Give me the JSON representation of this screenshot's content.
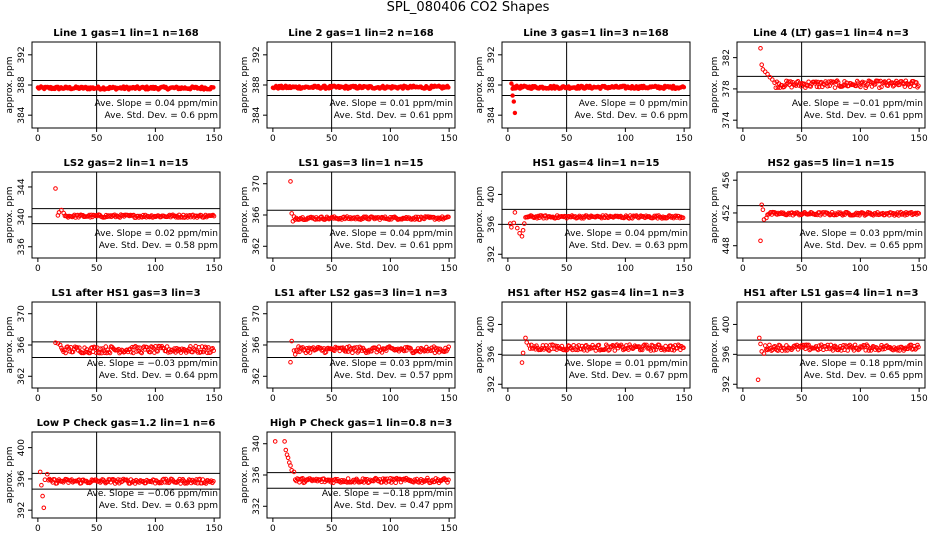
{
  "figure": {
    "title": "SPL_080406  CO2 Shapes"
  },
  "chart_data": [
    {
      "type": "scatter",
      "title": "Line 1 gas=1 lin=1 n=168",
      "ylabel": "approx. ppm",
      "xlim": [
        -5,
        155
      ],
      "ylim": [
        382.3,
        393.7
      ],
      "xticks": [
        0,
        50,
        100,
        150
      ],
      "yticks": [
        384,
        388,
        392
      ],
      "vline": 50,
      "hlines": [
        388.6,
        386.6
      ],
      "base": 387.6,
      "noise": 0.2,
      "spikes": [],
      "xstart": 0,
      "xend": 150,
      "markers": "filled",
      "slope_label": "Ave. Slope =",
      "slope_value": "0.04",
      "slope_unit": "ppm/min",
      "std_label": "Ave. Std. Dev. =",
      "std_value": "0.6",
      "std_unit": "ppm",
      "series": [
        {
          "name": "CO2",
          "color": "#ff0000"
        }
      ]
    },
    {
      "type": "scatter",
      "title": "Line 2 gas=1 lin=2 n=168",
      "ylabel": "approx. ppm",
      "xlim": [
        -5,
        155
      ],
      "ylim": [
        382.3,
        393.7
      ],
      "xticks": [
        0,
        50,
        100,
        150
      ],
      "yticks": [
        384,
        388,
        392
      ],
      "vline": 50,
      "hlines": [
        388.6,
        386.6
      ],
      "base": 387.7,
      "noise": 0.2,
      "spikes": [],
      "xstart": 0,
      "xend": 150,
      "markers": "filled",
      "slope_label": "Ave. Slope =",
      "slope_value": "0.01",
      "slope_unit": "ppm/min",
      "std_label": "Ave. Std. Dev. =",
      "std_value": "0.61",
      "std_unit": "ppm",
      "series": [
        {
          "name": "CO2",
          "color": "#ff0000"
        }
      ]
    },
    {
      "type": "scatter",
      "title": "Line 3 gas=1 lin=3 n=168",
      "ylabel": "approx. ppm",
      "xlim": [
        -5,
        155
      ],
      "ylim": [
        382.3,
        393.7
      ],
      "xticks": [
        0,
        50,
        100,
        150
      ],
      "yticks": [
        384,
        388,
        392
      ],
      "vline": 50,
      "hlines": [
        388.6,
        386.6
      ],
      "base": 387.7,
      "noise": 0.2,
      "spikes": [
        [
          3,
          388.2
        ],
        [
          4,
          386.6
        ],
        [
          5,
          385.8
        ],
        [
          6,
          384.3
        ]
      ],
      "xstart": 4,
      "xend": 150,
      "markers": "filled",
      "slope_label": "Ave. Slope =",
      "slope_value": "0",
      "slope_unit": "ppm/min",
      "std_label": "Ave. Std. Dev. =",
      "std_value": "0.6",
      "std_unit": "ppm",
      "series": [
        {
          "name": "CO2",
          "color": "#ff0000"
        }
      ]
    },
    {
      "type": "scatter",
      "title": "Line 4 (LT) gas=1 lin=4 n=3",
      "ylabel": "approx. ppm",
      "xlim": [
        -5,
        155
      ],
      "ylim": [
        373,
        384
      ],
      "xticks": [
        0,
        50,
        100,
        150
      ],
      "yticks": [
        374,
        378,
        382
      ],
      "vline": 50,
      "hlines": [
        379.6,
        377.6
      ],
      "base": 378.6,
      "noise": 0.45,
      "spikes": [
        [
          15,
          383.2
        ],
        [
          16,
          381.1
        ],
        [
          17,
          380.5
        ],
        [
          19,
          380.2
        ],
        [
          21,
          379.9
        ],
        [
          23,
          379.5
        ],
        [
          25,
          379.2
        ],
        [
          27,
          378.8
        ]
      ],
      "xstart": 28,
      "xend": 150,
      "markers": "open",
      "slope_label": "Ave. Slope =",
      "slope_value": "−0.01",
      "slope_unit": "ppm/min",
      "std_label": "Ave. Std. Dev. =",
      "std_value": "0.61",
      "std_unit": "ppm",
      "series": [
        {
          "name": "CO2",
          "color": "#ff0000"
        }
      ]
    },
    {
      "type": "scatter",
      "title": "LS2 gas=2 lin=1 n=15",
      "ylabel": "approx. ppm",
      "xlim": [
        -5,
        155
      ],
      "ylim": [
        334.5,
        346
      ],
      "xticks": [
        0,
        50,
        100,
        150
      ],
      "yticks": [
        336,
        340,
        344
      ],
      "vline": 50,
      "hlines": [
        341.1,
        339.1
      ],
      "base": 340.1,
      "noise": 0.2,
      "spikes": [
        [
          15,
          343.8
        ],
        [
          17,
          340.2
        ],
        [
          18,
          340.6
        ],
        [
          20,
          340.9
        ],
        [
          22,
          340.5
        ]
      ],
      "xstart": 23,
      "xend": 150,
      "markers": "open",
      "slope_label": "Ave. Slope =",
      "slope_value": "0.02",
      "slope_unit": "ppm/min",
      "std_label": "Ave. Std. Dev. =",
      "std_value": "0.58",
      "std_unit": "ppm",
      "series": [
        {
          "name": "CO2",
          "color": "#ff0000"
        }
      ]
    },
    {
      "type": "scatter",
      "title": "LS1 gas=3 lin=1 n=15",
      "ylabel": "approx. ppm",
      "xlim": [
        -5,
        155
      ],
      "ylim": [
        360.5,
        371.5
      ],
      "xticks": [
        0,
        50,
        100,
        150
      ],
      "yticks": [
        362,
        366,
        370
      ],
      "vline": 50,
      "hlines": [
        366.6,
        364.6
      ],
      "base": 365.6,
      "noise": 0.2,
      "spikes": [
        [
          15,
          370.3
        ],
        [
          16,
          366.2
        ],
        [
          17,
          365.2
        ],
        [
          18,
          365.8
        ]
      ],
      "xstart": 19,
      "xend": 150,
      "markers": "open",
      "slope_label": "Ave. Slope =",
      "slope_value": "0.04",
      "slope_unit": "ppm/min",
      "std_label": "Ave. Std. Dev. =",
      "std_value": "0.61",
      "std_unit": "ppm",
      "series": [
        {
          "name": "CO2",
          "color": "#ff0000"
        }
      ]
    },
    {
      "type": "scatter",
      "title": "HS1 gas=4 lin=1 n=15",
      "ylabel": "approx. ppm",
      "xlim": [
        -5,
        155
      ],
      "ylim": [
        391.5,
        403
      ],
      "xticks": [
        0,
        50,
        100,
        150
      ],
      "yticks": [
        392,
        396,
        400
      ],
      "vline": 50,
      "hlines": [
        398.0,
        396.0
      ],
      "base": 397.0,
      "noise": 0.2,
      "spikes": [
        [
          2,
          396.1
        ],
        [
          3,
          395.6
        ],
        [
          5,
          396.2
        ],
        [
          6,
          397.6
        ],
        [
          8,
          395.5
        ],
        [
          10,
          394.8
        ],
        [
          12,
          394.4
        ],
        [
          13,
          395.2
        ],
        [
          14,
          396.1
        ]
      ],
      "xstart": 15,
      "xend": 150,
      "markers": "open",
      "slope_label": "Ave. Slope =",
      "slope_value": "0.04",
      "slope_unit": "ppm/min",
      "std_label": "Ave. Std. Dev. =",
      "std_value": "0.63",
      "std_unit": "ppm",
      "series": [
        {
          "name": "CO2",
          "color": "#ff0000"
        }
      ]
    },
    {
      "type": "scatter",
      "title": "HS2 gas=5 lin=1 n=15",
      "ylabel": "approx. ppm",
      "xlim": [
        -5,
        155
      ],
      "ylim": [
        446.5,
        457
      ],
      "xticks": [
        0,
        50,
        100,
        150
      ],
      "yticks": [
        448,
        452,
        456
      ],
      "vline": 50,
      "hlines": [
        452.9,
        450.9
      ],
      "base": 451.9,
      "noise": 0.2,
      "spikes": [
        [
          15,
          448.6
        ],
        [
          16,
          453.0
        ],
        [
          17,
          452.4
        ],
        [
          18,
          451.2
        ],
        [
          20,
          451.4
        ]
      ],
      "xstart": 21,
      "xend": 150,
      "markers": "open",
      "slope_label": "Ave. Slope =",
      "slope_value": "0.03",
      "slope_unit": "ppm/min",
      "std_label": "Ave. Std. Dev. =",
      "std_value": "0.65",
      "std_unit": "ppm",
      "series": [
        {
          "name": "CO2",
          "color": "#ff0000"
        }
      ]
    },
    {
      "type": "scatter",
      "title": "LS1 after HS1 gas=3 lin=3",
      "ylabel": "approx. ppm",
      "xlim": [
        -5,
        155
      ],
      "ylim": [
        360.5,
        371.5
      ],
      "xticks": [
        0,
        50,
        100,
        150
      ],
      "yticks": [
        362,
        366,
        370
      ],
      "vline": 50,
      "hlines": [
        366.4,
        364.4
      ],
      "base": 365.4,
      "noise": 0.45,
      "spikes": [
        [
          15,
          366.3
        ],
        [
          17,
          366.2
        ],
        [
          19,
          366.0
        ]
      ],
      "xstart": 20,
      "xend": 150,
      "markers": "open",
      "slope_label": "Ave. Slope =",
      "slope_value": "−0.03",
      "slope_unit": "ppm/min",
      "std_label": "Ave. Std. Dev. =",
      "std_value": "0.64",
      "std_unit": "ppm",
      "series": [
        {
          "name": "CO2",
          "color": "#ff0000"
        }
      ]
    },
    {
      "type": "scatter",
      "title": "LS1 after LS2 gas=3 lin=1 n=3",
      "ylabel": "approx. ppm",
      "xlim": [
        -5,
        155
      ],
      "ylim": [
        360.5,
        371.5
      ],
      "xticks": [
        0,
        50,
        100,
        150
      ],
      "yticks": [
        362,
        366,
        370
      ],
      "vline": 50,
      "hlines": [
        366.4,
        364.4
      ],
      "base": 365.4,
      "noise": 0.4,
      "spikes": [
        [
          15,
          363.8
        ],
        [
          16,
          366.5
        ],
        [
          18,
          365.3
        ],
        [
          19,
          364.8
        ]
      ],
      "xstart": 20,
      "xend": 150,
      "markers": "open",
      "slope_label": "Ave. Slope =",
      "slope_value": "0.03",
      "slope_unit": "ppm/min",
      "std_label": "Ave. Std. Dev. =",
      "std_value": "0.57",
      "std_unit": "ppm",
      "series": [
        {
          "name": "CO2",
          "color": "#ff0000"
        }
      ]
    },
    {
      "type": "scatter",
      "title": "HS1 after HS2 gas=4 lin=1 n=3",
      "ylabel": "approx. ppm",
      "xlim": [
        -5,
        155
      ],
      "ylim": [
        391.5,
        403
      ],
      "xticks": [
        0,
        50,
        100,
        150
      ],
      "yticks": [
        392,
        396,
        400
      ],
      "vline": 50,
      "hlines": [
        397.9,
        395.9
      ],
      "base": 396.9,
      "noise": 0.4,
      "spikes": [
        [
          12,
          394.9
        ],
        [
          13,
          396.2
        ],
        [
          15,
          398.2
        ],
        [
          16,
          397.6
        ],
        [
          18,
          397.2
        ]
      ],
      "xstart": 19,
      "xend": 150,
      "markers": "open",
      "slope_label": "Ave. Slope =",
      "slope_value": "0.01",
      "slope_unit": "ppm/min",
      "std_label": "Ave. Std. Dev. =",
      "std_value": "0.67",
      "std_unit": "ppm",
      "series": [
        {
          "name": "CO2",
          "color": "#ff0000"
        }
      ]
    },
    {
      "type": "scatter",
      "title": "HS1 after LS1 gas=4 lin=1 n=3",
      "ylabel": "approx. ppm",
      "xlim": [
        -5,
        155
      ],
      "ylim": [
        391.5,
        403
      ],
      "xticks": [
        0,
        50,
        100,
        150
      ],
      "yticks": [
        392,
        396,
        400
      ],
      "vline": 50,
      "hlines": [
        397.9,
        395.9
      ],
      "base": 396.9,
      "noise": 0.4,
      "spikes": [
        [
          13,
          392.6
        ],
        [
          14,
          398.2
        ],
        [
          15,
          397.4
        ],
        [
          16,
          396.4
        ],
        [
          18,
          396.1
        ]
      ],
      "xstart": 19,
      "xend": 150,
      "markers": "open",
      "slope_label": "Ave. Slope =",
      "slope_value": "0.18",
      "slope_unit": "ppm/min",
      "std_label": "Ave. Std. Dev. =",
      "std_value": "0.65",
      "std_unit": "ppm",
      "series": [
        {
          "name": "CO2",
          "color": "#ff0000"
        }
      ]
    },
    {
      "type": "scatter",
      "title": "Low P Check gas=1.2 lin=1 n=6",
      "ylabel": "approx. ppm",
      "xlim": [
        -5,
        155
      ],
      "ylim": [
        391,
        402
      ],
      "xticks": [
        0,
        50,
        100,
        150
      ],
      "yticks": [
        392,
        396,
        400
      ],
      "vline": 50,
      "hlines": [
        396.7,
        394.7
      ],
      "base": 395.7,
      "noise": 0.3,
      "spikes": [
        [
          2,
          396.9
        ],
        [
          3,
          395.2
        ],
        [
          4,
          393.8
        ],
        [
          5,
          392.3
        ],
        [
          6,
          395.9
        ],
        [
          8,
          396.6
        ]
      ],
      "xstart": 9,
      "xend": 150,
      "markers": "open",
      "slope_label": "Ave. Slope =",
      "slope_value": "−0.06",
      "slope_unit": "ppm/min",
      "std_label": "Ave. Std. Dev. =",
      "std_value": "0.63",
      "std_unit": "ppm",
      "series": [
        {
          "name": "CO2",
          "color": "#ff0000"
        }
      ]
    },
    {
      "type": "scatter",
      "title": "High P Check gas=1 lin=0.8 n=3",
      "ylabel": "approx. ppm",
      "xlim": [
        -5,
        155
      ],
      "ylim": [
        330.5,
        341.5
      ],
      "xticks": [
        0,
        50,
        100,
        150
      ],
      "yticks": [
        332,
        336,
        340
      ],
      "vline": 50,
      "hlines": [
        336.3,
        334.3
      ],
      "base": 335.3,
      "noise": 0.3,
      "spikes": [
        [
          2,
          340.3
        ],
        [
          10,
          340.3
        ],
        [
          11,
          339.2
        ],
        [
          12,
          338.6
        ],
        [
          13,
          338.2
        ],
        [
          14,
          337.6
        ],
        [
          15,
          337.2
        ],
        [
          16,
          336.6
        ],
        [
          18,
          336.4
        ]
      ],
      "xstart": 19,
      "xend": 150,
      "markers": "open",
      "slope_label": "Ave. Slope =",
      "slope_value": "−0.18",
      "slope_unit": "ppm/min",
      "std_label": "Ave. Std. Dev. =",
      "std_value": "0.47",
      "std_unit": "ppm",
      "series": [
        {
          "name": "CO2",
          "color": "#ff0000"
        }
      ]
    }
  ]
}
